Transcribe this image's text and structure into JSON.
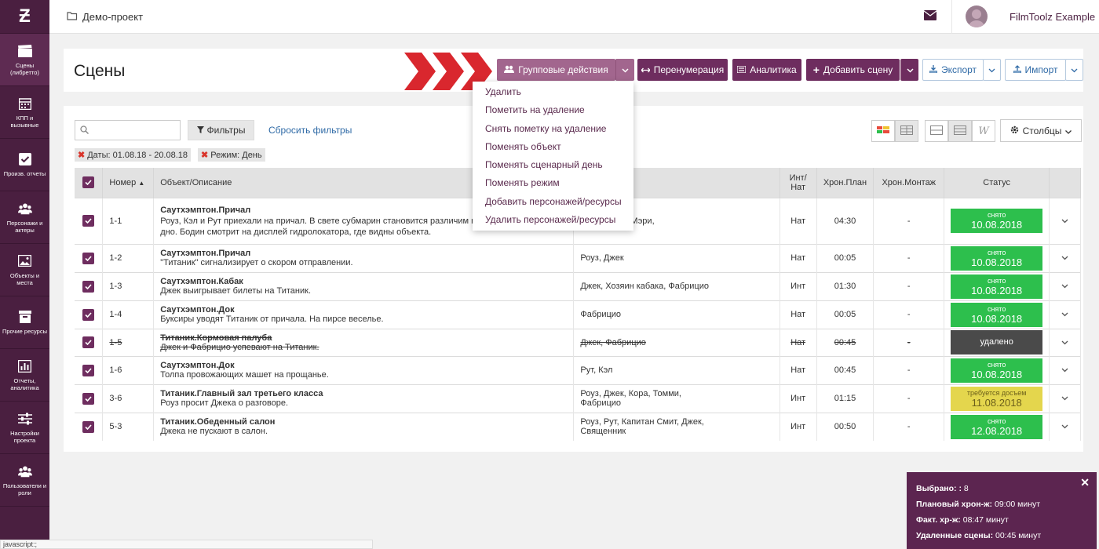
{
  "sidebar": {
    "logo": "Ƶ",
    "items": [
      {
        "label": "Сцены (либретто)",
        "icon": "clapperboard-icon"
      },
      {
        "label": "КПП и вызывные",
        "icon": "calendar-icon"
      },
      {
        "label": "Произв. отчеты",
        "icon": "checkbox-icon"
      },
      {
        "label": "Персонажи и актеры",
        "icon": "users-icon"
      },
      {
        "label": "Объекты и места",
        "icon": "image-icon"
      },
      {
        "label": "Прочие ресурсы",
        "icon": "box-icon"
      },
      {
        "label": "Отчеты, аналитика",
        "icon": "bar-chart-icon"
      },
      {
        "label": "Настройки проекта",
        "icon": "sliders-icon"
      },
      {
        "label": "Пользователи и роли",
        "icon": "users-icon"
      }
    ]
  },
  "topbar": {
    "breadcrumb": "Демо-проект",
    "user_name": "FilmToolz Example"
  },
  "header": {
    "title": "Сцены",
    "group_actions": "Групповые действия",
    "renumber": "Перенумерация",
    "analytics": "Аналитика",
    "add_scene": "Добавить сцену",
    "export": "Экспорт",
    "import": "Импорт"
  },
  "toolbar": {
    "search_placeholder": "",
    "filters": "Фильтры",
    "reset_filters": "Сбросить фильтры",
    "columns": "Столбцы",
    "chips": [
      "Даты: 01.08.18 - 20.08.18",
      "Режим: День"
    ]
  },
  "dropdown": [
    "Удалить",
    "Пометить на удаление",
    "Снять пометку на удаление",
    "Поменять объект",
    "Поменять сценарный день",
    "Поменять режим",
    "Добавить персонажей/ресурсы",
    "Удалить персонажей/ресурсы"
  ],
  "table": {
    "headers": {
      "number": "Номер",
      "object": "Объект/Описание",
      "int_nat_1": "Инт/",
      "int_nat_2": "Нат",
      "chron_plan": "Хрон.План",
      "chron_montage": "Хрон.Монтаж",
      "status": "Статус"
    },
    "rows": [
      {
        "num": "1-1",
        "scene": "Саутхэмптон.Причал",
        "desc": "Роуз, Кэл и Рут приехали на причал. В свете субмарин становится различим н ил, покрывающий дно. Бодин смотрит на дисплей гидролокатора, где видны объекта.",
        "chars": "ел, Марвин, Мэри,",
        "chars2": "",
        "intnat": "Нат",
        "plan": "04:30",
        "montage": "-",
        "st1": "снято",
        "st2": "10.08.2018",
        "type": "green",
        "deleted": false
      },
      {
        "num": "1-2",
        "scene": "Саутхэмптон.Причал",
        "desc": "\"Титаник\" сигнализирует о скором отправлении.",
        "chars": "Роуз, Джек",
        "chars2": "",
        "intnat": "Нат",
        "plan": "00:05",
        "montage": "-",
        "st1": "снято",
        "st2": "10.08.2018",
        "type": "green",
        "deleted": false
      },
      {
        "num": "1-3",
        "scene": "Саутхэмптон.Кабак",
        "desc": "Джек выигрывает билеты на Титаник.",
        "chars": "Джек, Хозяин кабака, Фабрицио",
        "chars2": "",
        "intnat": "Инт",
        "plan": "01:30",
        "montage": "-",
        "st1": "снято",
        "st2": "10.08.2018",
        "type": "green",
        "deleted": false
      },
      {
        "num": "1-4",
        "scene": "Саутхэмптон.Док",
        "desc": "Буксиры уводят Титаник от причала. На пирсе веселье.",
        "chars": "Фабрицио",
        "chars2": "",
        "intnat": "Нат",
        "plan": "00:05",
        "montage": "-",
        "st1": "снято",
        "st2": "10.08.2018",
        "type": "green",
        "deleted": false
      },
      {
        "num": "1-5",
        "scene": "Титаник.Кормовая палуба",
        "desc": "Джек и Фабрицио успевают на Титаник.",
        "chars": "Джек, Фабрицио",
        "chars2": "",
        "intnat": "Нат",
        "plan": "00:45",
        "montage": "-",
        "st1": "",
        "st2": "удалено",
        "type": "grey",
        "deleted": true
      },
      {
        "num": "1-6",
        "scene": "Саутхэмптон.Док",
        "desc": "Толпа провожающих машет на прощанье.",
        "chars": "Рут, Кэл",
        "chars2": "",
        "intnat": "Нат",
        "plan": "00:45",
        "montage": "-",
        "st1": "снято",
        "st2": "10.08.2018",
        "type": "green",
        "deleted": false
      },
      {
        "num": "3-6",
        "scene": "Титаник.Главный зал третьего класса",
        "desc": "Роуз просит Джека о разговоре.",
        "chars": "Роуз, Джек, Кора, Томми,",
        "chars2": "Фабрицио",
        "intnat": "Инт",
        "plan": "01:15",
        "montage": "-",
        "st1": "требуется досъем",
        "st2": "11.08.2018",
        "type": "yellow",
        "deleted": false
      },
      {
        "num": "5-3",
        "scene": "Титаник.Обеденный салон",
        "desc": "Джека не пускают в салон.",
        "chars": "Роуз, Рут, Капитан Смит, Джек,",
        "chars2": "Священник",
        "intnat": "Инт",
        "plan": "00:50",
        "montage": "-",
        "st1": "снято",
        "st2": "12.08.2018",
        "type": "green",
        "deleted": false
      }
    ]
  },
  "summary": {
    "selected_label": "Выбрано: :",
    "selected_value": "8",
    "plan_label": "Плановый хрон-ж:",
    "plan_value": "09:00 минут",
    "fact_label": "Факт. хр-ж:",
    "fact_value": "08:47 минут",
    "deleted_label": "Удаленные сцены:",
    "deleted_value": "00:45 минут"
  },
  "statusbar": "javascript:;"
}
